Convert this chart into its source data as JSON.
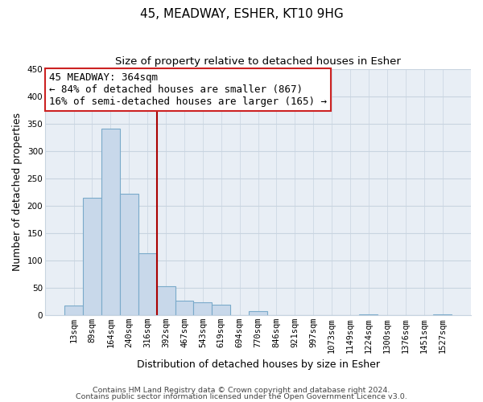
{
  "title": "45, MEADWAY, ESHER, KT10 9HG",
  "subtitle": "Size of property relative to detached houses in Esher",
  "xlabel": "Distribution of detached houses by size in Esher",
  "ylabel": "Number of detached properties",
  "bar_labels": [
    "13sqm",
    "89sqm",
    "164sqm",
    "240sqm",
    "316sqm",
    "392sqm",
    "467sqm",
    "543sqm",
    "619sqm",
    "694sqm",
    "770sqm",
    "846sqm",
    "921sqm",
    "997sqm",
    "1073sqm",
    "1149sqm",
    "1224sqm",
    "1300sqm",
    "1376sqm",
    "1451sqm",
    "1527sqm"
  ],
  "bar_values": [
    18,
    215,
    340,
    222,
    113,
    53,
    26,
    24,
    19,
    0,
    7,
    0,
    0,
    0,
    0,
    0,
    2,
    0,
    0,
    0,
    2
  ],
  "bar_fill_color": "#c8d8ea",
  "bar_edge_color": "#7aaaca",
  "vline_color": "#aa0000",
  "annotation_title": "45 MEADWAY: 364sqm",
  "annotation_line1": "← 84% of detached houses are smaller (867)",
  "annotation_line2": "16% of semi-detached houses are larger (165) →",
  "annotation_box_facecolor": "#ffffff",
  "annotation_box_edgecolor": "#cc2222",
  "ylim": [
    0,
    450
  ],
  "footer1": "Contains HM Land Registry data © Crown copyright and database right 2024.",
  "footer2": "Contains public sector information licensed under the Open Government Licence v3.0.",
  "bg_color": "#ffffff",
  "plot_bg_color": "#e8eef5",
  "grid_color": "#c8d4e0",
  "title_fontsize": 11,
  "subtitle_fontsize": 9.5,
  "ylabel_fontsize": 9,
  "xlabel_fontsize": 9,
  "tick_fontsize": 7.5,
  "footer_fontsize": 6.8,
  "annotation_fontsize": 9
}
